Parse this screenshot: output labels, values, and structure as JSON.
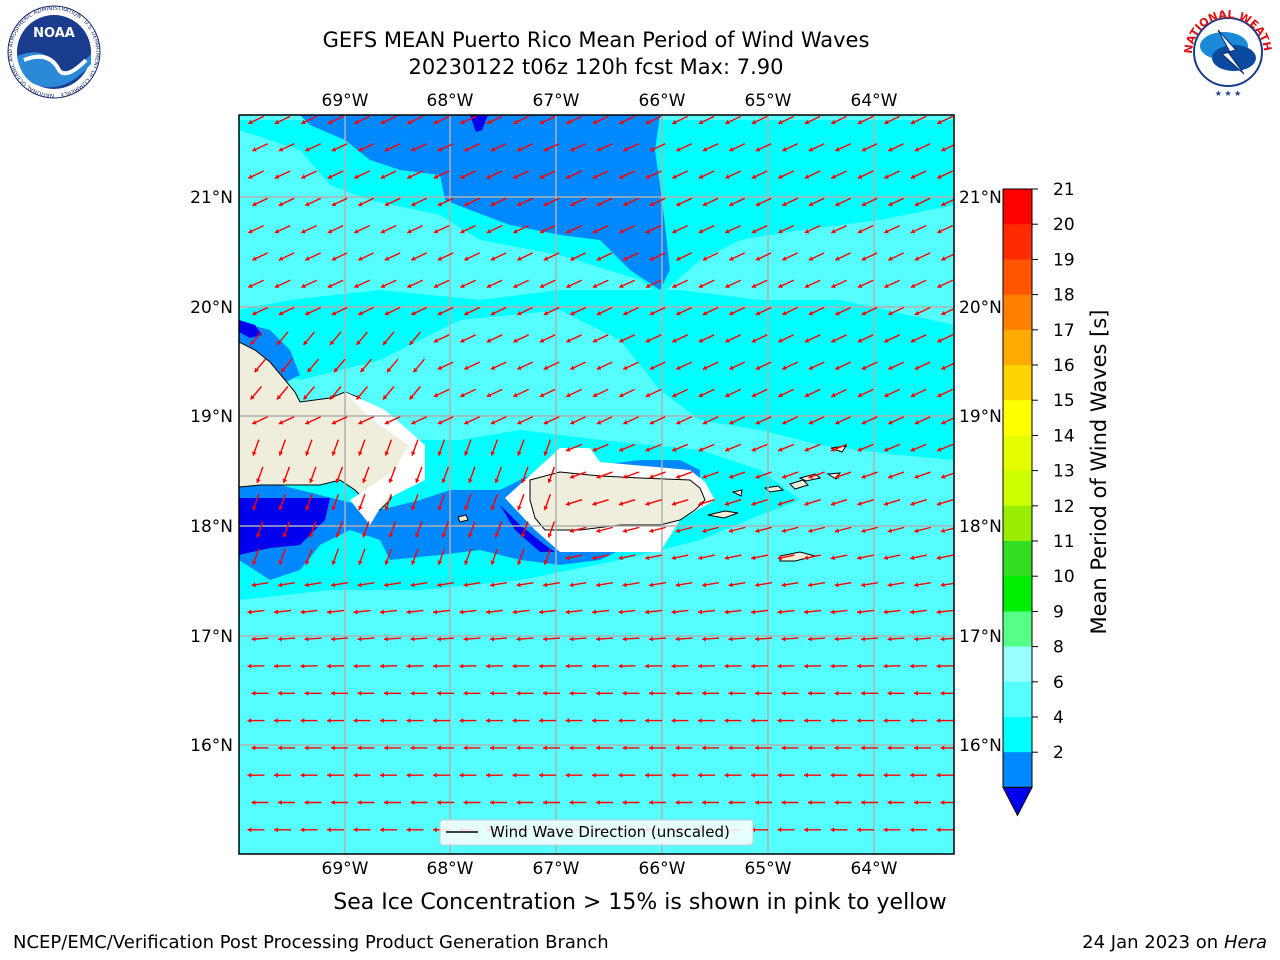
{
  "title": {
    "line1": "GEFS MEAN Puerto Rico Mean Period of Wind Waves",
    "line2": "20230122 t06z 120h fcst   Max: 7.90"
  },
  "longitude_ticks": [
    "69°W",
    "68°W",
    "67°W",
    "66°W",
    "65°W",
    "64°W"
  ],
  "latitude_ticks": [
    "21°N",
    "20°N",
    "19°N",
    "18°N",
    "17°N",
    "16°N"
  ],
  "legend": {
    "label": "Wind Wave Direction (unscaled)"
  },
  "colorbar": {
    "label": "Mean Period of Wind Waves [s]",
    "ticks": [
      "21",
      "20",
      "19",
      "18",
      "17",
      "16",
      "15",
      "14",
      "13",
      "12",
      "11",
      "10",
      "9",
      "8",
      "6",
      "4",
      "2"
    ],
    "colors": [
      "#ff0000",
      "#ff2a00",
      "#ff5500",
      "#ff8000",
      "#ffaa00",
      "#ffd400",
      "#ffff00",
      "#e6ff00",
      "#ccff00",
      "#99ee00",
      "#33dd22",
      "#00ee00",
      "#55ff88",
      "#99ffff",
      "#55ffff",
      "#00ffff",
      "#0088ff"
    ],
    "under_color": "#0000ee"
  },
  "note": "Sea Ice Concentration > 15% is shown in pink to yellow",
  "footer": {
    "left": "NCEP/EMC/Verification Post Processing Product Generation Branch",
    "right_date": "24 Jan 2023 on ",
    "right_host": "Hera"
  },
  "logos": {
    "noaa": "NOAA",
    "noaa_ring": "NATIONAL OCEANIC AND ATMOSPHERIC ADMINISTRATION · U.S. DEPARTMENT OF COMMERCE",
    "nws_ring": "NATIONAL WEATHER SERVICE"
  },
  "colors": {
    "ocean_light": "#55ffff",
    "ocean_mid": "#00ffff",
    "ocean_blue": "#0088ff",
    "ocean_deep": "#0000ee",
    "land": "#efeedd",
    "arrow": "#ff0000",
    "grid": "#b0b0b0"
  }
}
